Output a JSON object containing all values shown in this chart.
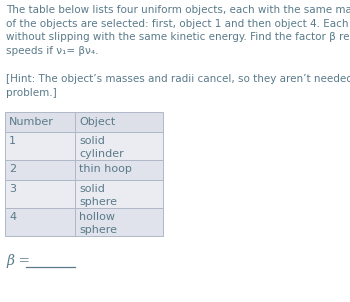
{
  "title_text": "The table below lists four uniform objects, each with the same mass and radius. Two\nof the objects are selected: first, object 1 and then object 4. Each object is rolled\nwithout slipping with the same kinetic energy. Find the factor β relating their linear\nspeeds if ν₁= βν₄.",
  "hint_text": "[Hint: The object’s masses and radii cancel, so they aren’t needed to solve the\nproblem.]",
  "col_headers": [
    "Number",
    "Object"
  ],
  "rows": [
    [
      "1",
      "solid\ncylinder"
    ],
    [
      "2",
      "thin hoop"
    ],
    [
      "3",
      "solid\nsphere"
    ],
    [
      "4",
      "hollow\nsphere"
    ]
  ],
  "answer_label": "β =",
  "bg_color": "#ffffff",
  "text_color": "#5a7a8a",
  "table_header_bg": "#dde0e8",
  "table_row_bg_1": "#eaecf2",
  "table_row_bg_2": "#e0e3eb",
  "table_border_color": "#b0b8c8",
  "title_fontsize": 7.5,
  "hint_fontsize": 7.5,
  "table_fontsize": 8.0,
  "answer_fontsize": 10
}
